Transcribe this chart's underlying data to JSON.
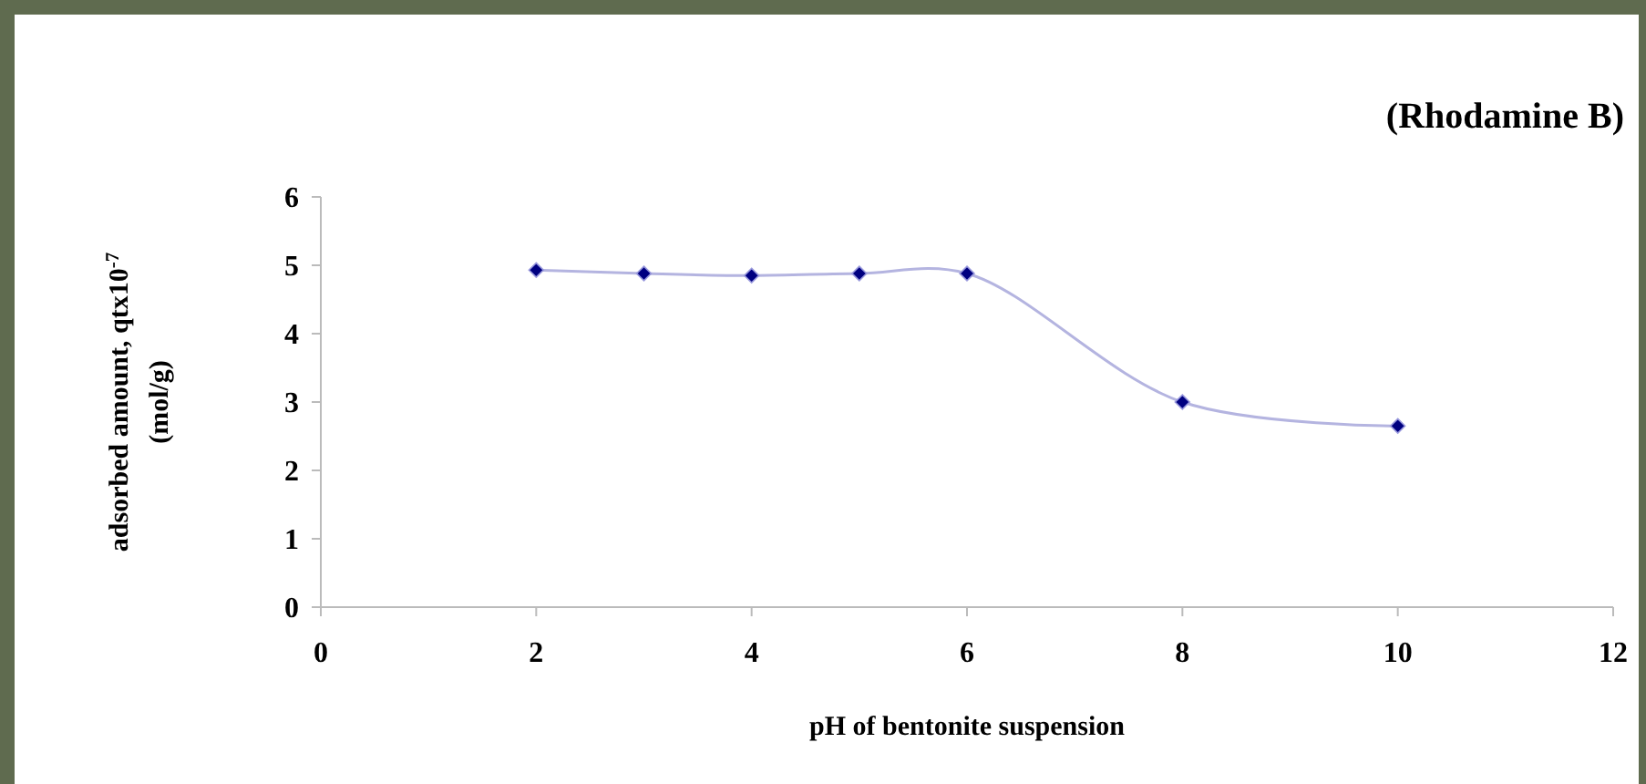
{
  "chart_data": {
    "type": "line",
    "title": "(Rhodamine B)",
    "xlabel": "pH of bentonite suspension",
    "ylabel": "adsorbed amount, qtx10$^{-7}$\n(mol/g)",
    "x": [
      2,
      3,
      4,
      5,
      6,
      8,
      10
    ],
    "series": [
      {
        "color": "#b4b4e0",
        "values": [
          4.93,
          4.88,
          4.85,
          4.88,
          4.88,
          3.0,
          2.65
        ]
      }
    ],
    "xlim": [
      0,
      12
    ],
    "xticks": [
      0,
      2,
      4,
      6,
      8,
      10,
      12
    ],
    "ylim": [
      0,
      6
    ],
    "yticks": [
      0,
      1,
      2,
      3,
      4,
      5,
      6
    ],
    "marker": "diamond",
    "line_style": "solid",
    "grid": false
  }
}
